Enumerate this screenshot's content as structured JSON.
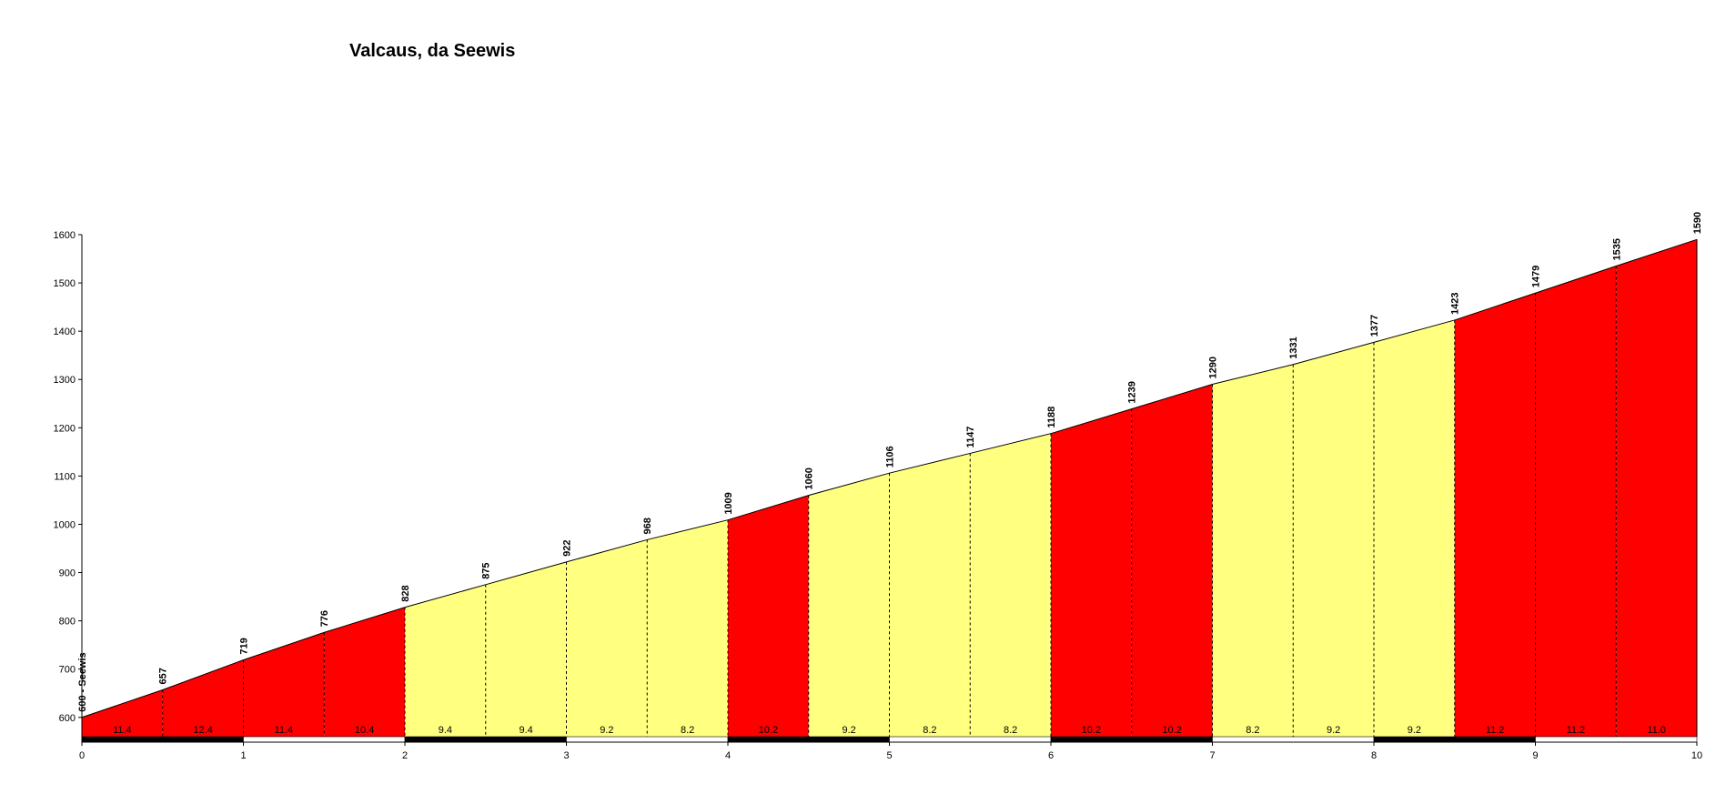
{
  "chart_data": {
    "type": "area",
    "title": "Valcaus, da Seewis",
    "xlabel": "",
    "ylabel": "",
    "xlim": [
      0,
      10
    ],
    "ylim": [
      560,
      1600
    ],
    "yticks": [
      600,
      700,
      800,
      900,
      1000,
      1100,
      1200,
      1300,
      1400,
      1500,
      1600
    ],
    "xticks": [
      0,
      1,
      2,
      3,
      4,
      5,
      6,
      7,
      8,
      9,
      10
    ],
    "grid": false,
    "start_label": "600 - Seewis",
    "points": [
      {
        "x": 0.0,
        "y": 600
      },
      {
        "x": 0.5,
        "y": 657
      },
      {
        "x": 1.0,
        "y": 719
      },
      {
        "x": 1.5,
        "y": 776
      },
      {
        "x": 2.0,
        "y": 828
      },
      {
        "x": 2.5,
        "y": 875
      },
      {
        "x": 3.0,
        "y": 922
      },
      {
        "x": 3.5,
        "y": 968
      },
      {
        "x": 4.0,
        "y": 1009
      },
      {
        "x": 4.5,
        "y": 1060
      },
      {
        "x": 5.0,
        "y": 1106
      },
      {
        "x": 5.5,
        "y": 1147
      },
      {
        "x": 6.0,
        "y": 1188
      },
      {
        "x": 6.5,
        "y": 1239
      },
      {
        "x": 7.0,
        "y": 1290
      },
      {
        "x": 7.5,
        "y": 1331
      },
      {
        "x": 8.0,
        "y": 1377
      },
      {
        "x": 8.5,
        "y": 1423
      },
      {
        "x": 9.0,
        "y": 1479
      },
      {
        "x": 9.5,
        "y": 1535
      },
      {
        "x": 10.0,
        "y": 1590
      }
    ],
    "segment_gradients": [
      "11.4",
      "12.4",
      "11.4",
      "10.4",
      "9.4",
      "9.4",
      "9.2",
      "8.2",
      "10.2",
      "9.2",
      "8.2",
      "8.2",
      "10.2",
      "10.2",
      "8.2",
      "9.2",
      "9.2",
      "11.2",
      "11.2",
      "11.0"
    ],
    "segment_colors": [
      "#ff0000",
      "#ff0000",
      "#ff0000",
      "#ff0000",
      "#ffff80",
      "#ffff80",
      "#ffff80",
      "#ffff80",
      "#ff0000",
      "#ffff80",
      "#ffff80",
      "#ffff80",
      "#ff0000",
      "#ff0000",
      "#ffff80",
      "#ffff80",
      "#ffff80",
      "#ff0000",
      "#ff0000",
      "#ff0000"
    ]
  }
}
